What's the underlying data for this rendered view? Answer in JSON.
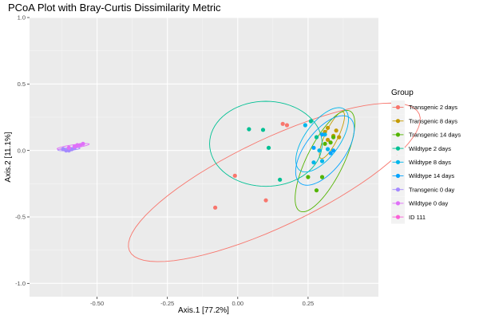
{
  "chart_data": {
    "type": "scatter",
    "title": "PCoA Plot with Bray-Curtis Dissimilarity Metric",
    "xlabel": "Axis.1   [77.2%]",
    "ylabel": "Axis.2   [11.1%]",
    "xlim": [
      -0.74,
      0.5
    ],
    "ylim": [
      -1.1,
      1.0
    ],
    "x_ticks": [
      -0.5,
      -0.25,
      0.0,
      0.25
    ],
    "x_tick_labels": [
      "-0.50",
      "-0.25",
      "0.00",
      "0.25"
    ],
    "y_ticks": [
      -1.0,
      -0.5,
      0.0,
      0.5,
      1.0
    ],
    "y_tick_labels": [
      "-1.0",
      "-0.5",
      "0.0",
      "0.5",
      "1.0"
    ],
    "grid": true,
    "legend_title": "Group",
    "legend_position": "right",
    "series": [
      {
        "name": "Transgenic 2 days",
        "color": "#F8766D",
        "points": [
          [
            0.16,
            0.2
          ],
          [
            0.175,
            0.19
          ],
          [
            -0.01,
            -0.19
          ],
          [
            0.1,
            -0.375
          ],
          [
            -0.08,
            -0.43
          ]
        ],
        "ellipse": {
          "cx": 0.13,
          "cy": -0.24,
          "rx": 0.75,
          "ry": 0.25,
          "angle_deg": 50
        }
      },
      {
        "name": "Transgenic 8 days",
        "color": "#C49A00",
        "points": [
          [
            0.32,
            0.17
          ],
          [
            0.34,
            0.11
          ],
          [
            0.35,
            0.15
          ],
          [
            0.32,
            0.08
          ],
          [
            0.31,
            0.14
          ],
          [
            0.36,
            0.1
          ]
        ],
        "ellipse": {
          "cx": 0.335,
          "cy": 0.115,
          "rx": 0.18,
          "ry": 0.025,
          "angle_deg": 78
        }
      },
      {
        "name": "Transgenic 14 days",
        "color": "#53B400",
        "points": [
          [
            0.28,
            -0.3
          ],
          [
            0.25,
            -0.2
          ],
          [
            0.3,
            -0.2
          ],
          [
            0.34,
            0.1
          ],
          [
            0.33,
            0.06
          ],
          [
            0.31,
            0.05
          ]
        ],
        "ellipse": {
          "cx": 0.31,
          "cy": -0.08,
          "rx": 0.39,
          "ry": 0.07,
          "angle_deg": 78
        }
      },
      {
        "name": "Wildtype 2 days",
        "color": "#00C094",
        "points": [
          [
            0.04,
            0.16
          ],
          [
            0.09,
            0.155
          ],
          [
            0.11,
            0.02
          ],
          [
            0.15,
            -0.22
          ],
          [
            0.26,
            0.22
          ],
          [
            0.28,
            0.1
          ]
        ],
        "ellipse": {
          "cx": 0.1,
          "cy": 0.05,
          "rx": 0.2,
          "ry": 0.32,
          "angle_deg": 0
        }
      },
      {
        "name": "Wildtype 8 days",
        "color": "#00B6EB",
        "points": [
          [
            0.24,
            0.19
          ],
          [
            0.27,
            -0.09
          ],
          [
            0.3,
            -0.08
          ],
          [
            0.32,
            0.01
          ],
          [
            0.29,
            0.0
          ],
          [
            0.31,
            0.12
          ]
        ],
        "ellipse": {
          "cx": 0.3,
          "cy": 0.08,
          "rx": 0.25,
          "ry": 0.07,
          "angle_deg": 75
        }
      },
      {
        "name": "Wildtype 14 days",
        "color": "#06A4FF",
        "points": [
          [
            0.33,
            -0.02
          ],
          [
            0.3,
            0.12
          ],
          [
            0.27,
            0.02
          ],
          [
            0.34,
            0.0
          ]
        ],
        "ellipse": {
          "cx": 0.31,
          "cy": 0.0,
          "rx": 0.27,
          "ry": 0.08,
          "angle_deg": 75
        }
      },
      {
        "name": "Transgenic 0 day",
        "color": "#A58AFF",
        "points": [
          [
            -0.62,
            0.01
          ],
          [
            -0.6,
            0.0
          ],
          [
            -0.59,
            0.01
          ],
          [
            -0.58,
            0.02
          ],
          [
            -0.61,
            0.0
          ]
        ],
        "ellipse": {
          "cx": -0.6,
          "cy": 0.01,
          "rx": 0.04,
          "ry": 0.01,
          "angle_deg": 10
        }
      },
      {
        "name": "Wildtype 0 day",
        "color": "#DF70F8",
        "points": [
          [
            -0.57,
            0.04
          ],
          [
            -0.58,
            0.03
          ],
          [
            -0.55,
            0.05
          ],
          [
            -0.6,
            0.02
          ],
          [
            -0.56,
            0.04
          ]
        ],
        "ellipse": {
          "cx": -0.585,
          "cy": 0.03,
          "rx": 0.06,
          "ry": 0.012,
          "angle_deg": 18
        }
      },
      {
        "name": "ID 111",
        "color": "#FB61D7",
        "points": [],
        "ellipse": null
      }
    ]
  }
}
